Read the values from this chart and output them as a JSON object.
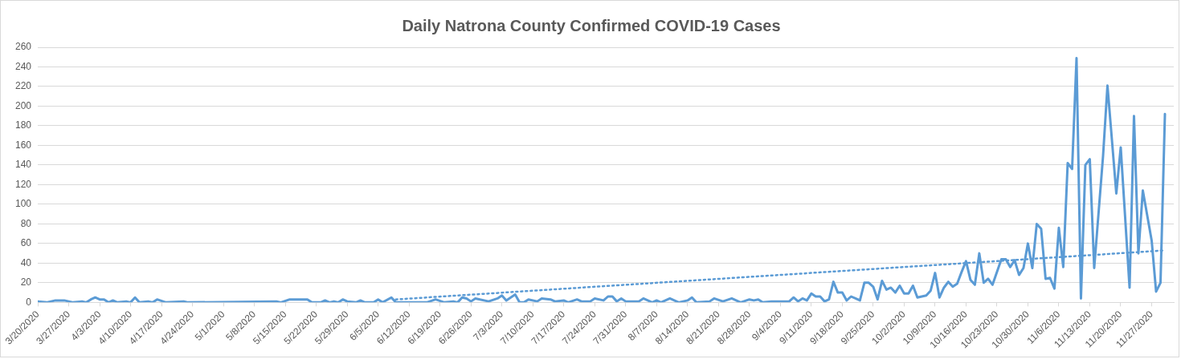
{
  "chart_data": {
    "type": "line",
    "title": "Daily Natrona County Confirmed COVID-19 Cases",
    "x": [
      "2020-03-20",
      "2020-03-22",
      "2020-03-24",
      "2020-03-26",
      "2020-03-28",
      "2020-03-30",
      "2020-03-31",
      "2020-04-01",
      "2020-04-02",
      "2020-04-03",
      "2020-04-04",
      "2020-04-05",
      "2020-04-06",
      "2020-04-07",
      "2020-04-09",
      "2020-04-10",
      "2020-04-11",
      "2020-04-12",
      "2020-04-14",
      "2020-04-15",
      "2020-04-16",
      "2020-04-18",
      "2020-04-22",
      "2020-04-23",
      "2020-05-13",
      "2020-05-14",
      "2020-05-16",
      "2020-05-20",
      "2020-05-21",
      "2020-05-23",
      "2020-05-24",
      "2020-05-25",
      "2020-05-26",
      "2020-05-27",
      "2020-05-28",
      "2020-05-29",
      "2020-05-31",
      "2020-06-01",
      "2020-06-02",
      "2020-06-04",
      "2020-06-05",
      "2020-06-06",
      "2020-06-08",
      "2020-06-09",
      "2020-06-16",
      "2020-06-18",
      "2020-06-20",
      "2020-06-22",
      "2020-06-23",
      "2020-06-24",
      "2020-06-25",
      "2020-06-26",
      "2020-06-27",
      "2020-06-30",
      "2020-07-02",
      "2020-07-03",
      "2020-07-04",
      "2020-07-06",
      "2020-07-07",
      "2020-07-08",
      "2020-07-09",
      "2020-07-11",
      "2020-07-12",
      "2020-07-14",
      "2020-07-15",
      "2020-07-17",
      "2020-07-18",
      "2020-07-20",
      "2020-07-21",
      "2020-07-23",
      "2020-07-24",
      "2020-07-26",
      "2020-07-27",
      "2020-07-28",
      "2020-07-29",
      "2020-07-30",
      "2020-07-31",
      "2020-08-03",
      "2020-08-04",
      "2020-08-06",
      "2020-08-07",
      "2020-08-08",
      "2020-08-10",
      "2020-08-12",
      "2020-08-14",
      "2020-08-15",
      "2020-08-16",
      "2020-08-19",
      "2020-08-20",
      "2020-08-22",
      "2020-08-24",
      "2020-08-26",
      "2020-08-28",
      "2020-08-29",
      "2020-08-30",
      "2020-08-31",
      "2020-09-02",
      "2020-09-06",
      "2020-09-07",
      "2020-09-08",
      "2020-09-09",
      "2020-09-10",
      "2020-09-11",
      "2020-09-12",
      "2020-09-13",
      "2020-09-14",
      "2020-09-15",
      "2020-09-16",
      "2020-09-17",
      "2020-09-18",
      "2020-09-19",
      "2020-09-20",
      "2020-09-21",
      "2020-09-22",
      "2020-09-23",
      "2020-09-24",
      "2020-09-25",
      "2020-09-26",
      "2020-09-27",
      "2020-09-28",
      "2020-09-29",
      "2020-09-30",
      "2020-10-01",
      "2020-10-02",
      "2020-10-03",
      "2020-10-04",
      "2020-10-05",
      "2020-10-06",
      "2020-10-07",
      "2020-10-08",
      "2020-10-09",
      "2020-10-10",
      "2020-10-11",
      "2020-10-12",
      "2020-10-13",
      "2020-10-14",
      "2020-10-15",
      "2020-10-16",
      "2020-10-17",
      "2020-10-18",
      "2020-10-19",
      "2020-10-20",
      "2020-10-21",
      "2020-10-22",
      "2020-10-24",
      "2020-10-25",
      "2020-10-26",
      "2020-10-27",
      "2020-10-28",
      "2020-10-29",
      "2020-10-30",
      "2020-10-31",
      "2020-11-01",
      "2020-11-02",
      "2020-11-03",
      "2020-11-04",
      "2020-11-05",
      "2020-11-06",
      "2020-11-07",
      "2020-11-08",
      "2020-11-09",
      "2020-11-10",
      "2020-11-11",
      "2020-11-12",
      "2020-11-13",
      "2020-11-14",
      "2020-11-16",
      "2020-11-17",
      "2020-11-19",
      "2020-11-20",
      "2020-11-22",
      "2020-11-23",
      "2020-11-24",
      "2020-11-25",
      "2020-11-27",
      "2020-11-28",
      "2020-11-29",
      "2020-11-30"
    ],
    "series": [
      {
        "color": "#5b9bd5",
        "values": [
          1,
          0,
          2,
          2,
          0,
          1,
          0,
          3,
          5,
          3,
          3,
          0,
          2,
          0,
          1,
          0,
          5,
          0,
          1,
          0,
          3,
          0,
          1,
          0,
          1,
          0,
          3,
          3,
          0,
          0,
          2,
          0,
          1,
          0,
          3,
          1,
          0,
          2,
          0,
          0,
          3,
          0,
          5,
          0,
          0,
          3,
          0,
          1,
          0,
          5,
          4,
          1,
          4,
          1,
          4,
          7,
          2,
          8,
          0,
          0,
          3,
          1,
          4,
          3,
          1,
          2,
          0,
          3,
          1,
          1,
          4,
          2,
          6,
          6,
          1,
          4,
          1,
          1,
          4,
          0,
          2,
          0,
          4,
          0,
          2,
          5,
          0,
          1,
          4,
          1,
          4,
          0,
          3,
          2,
          3,
          0,
          1,
          1,
          5,
          1,
          4,
          2,
          9,
          6,
          6,
          1,
          3,
          21,
          10,
          10,
          2,
          6,
          4,
          2,
          20,
          20,
          16,
          3,
          22,
          13,
          15,
          10,
          17,
          9,
          9,
          17,
          5,
          6,
          7,
          12,
          30,
          5,
          15,
          21,
          16,
          19,
          31,
          42,
          23,
          18,
          50,
          20,
          24,
          18,
          44,
          44,
          36,
          43,
          28,
          35,
          60,
          35,
          80,
          75,
          24,
          25,
          14,
          76,
          36,
          142,
          136,
          249,
          4,
          140,
          146,
          35,
          149,
          221,
          111,
          158,
          15,
          190,
          50,
          114,
          63,
          11,
          20,
          192
        ]
      },
      {
        "type": "line",
        "line_style": "dotted",
        "color": "#5b9bd5",
        "x": [
          "2020-06-09",
          "2020-11-30"
        ],
        "values": [
          3,
          53
        ]
      }
    ],
    "xlim": [
      "2020-03-20",
      "2020-12-02"
    ],
    "xticks": [
      {
        "value": "2020-03-20",
        "label": "3/20/2020"
      },
      {
        "value": "2020-03-27",
        "label": "3/27/2020"
      },
      {
        "value": "2020-04-03",
        "label": "4/3/2020"
      },
      {
        "value": "2020-04-10",
        "label": "4/10/2020"
      },
      {
        "value": "2020-04-17",
        "label": "4/17/2020"
      },
      {
        "value": "2020-04-24",
        "label": "4/24/2020"
      },
      {
        "value": "2020-05-01",
        "label": "5/1/2020"
      },
      {
        "value": "2020-05-08",
        "label": "5/8/2020"
      },
      {
        "value": "2020-05-15",
        "label": "5/15/2020"
      },
      {
        "value": "2020-05-22",
        "label": "5/22/2020"
      },
      {
        "value": "2020-05-29",
        "label": "5/29/2020"
      },
      {
        "value": "2020-06-05",
        "label": "6/5/2020"
      },
      {
        "value": "2020-06-12",
        "label": "6/12/2020"
      },
      {
        "value": "2020-06-19",
        "label": "6/19/2020"
      },
      {
        "value": "2020-06-26",
        "label": "6/26/2020"
      },
      {
        "value": "2020-07-03",
        "label": "7/3/2020"
      },
      {
        "value": "2020-07-10",
        "label": "7/10/2020"
      },
      {
        "value": "2020-07-17",
        "label": "7/17/2020"
      },
      {
        "value": "2020-07-24",
        "label": "7/24/2020"
      },
      {
        "value": "2020-07-31",
        "label": "7/31/2020"
      },
      {
        "value": "2020-08-07",
        "label": "8/7/2020"
      },
      {
        "value": "2020-08-14",
        "label": "8/14/2020"
      },
      {
        "value": "2020-08-21",
        "label": "8/21/2020"
      },
      {
        "value": "2020-08-28",
        "label": "8/28/2020"
      },
      {
        "value": "2020-09-04",
        "label": "9/4/2020"
      },
      {
        "value": "2020-09-11",
        "label": "9/11/2020"
      },
      {
        "value": "2020-09-18",
        "label": "9/18/2020"
      },
      {
        "value": "2020-09-25",
        "label": "9/25/2020"
      },
      {
        "value": "2020-10-02",
        "label": "10/2/2020"
      },
      {
        "value": "2020-10-09",
        "label": "10/9/2020"
      },
      {
        "value": "2020-10-16",
        "label": "10/16/2020"
      },
      {
        "value": "2020-10-23",
        "label": "10/23/2020"
      },
      {
        "value": "2020-10-30",
        "label": "10/30/2020"
      },
      {
        "value": "2020-11-06",
        "label": "11/6/2020"
      },
      {
        "value": "2020-11-13",
        "label": "11/13/2020"
      },
      {
        "value": "2020-11-20",
        "label": "11/20/2020"
      },
      {
        "value": "2020-11-27",
        "label": "11/27/2020"
      }
    ],
    "ylim": [
      0,
      260
    ],
    "yticks": [
      0,
      20,
      40,
      60,
      80,
      100,
      120,
      140,
      160,
      180,
      200,
      220,
      240,
      260
    ],
    "grid": "y",
    "marker": "none"
  }
}
